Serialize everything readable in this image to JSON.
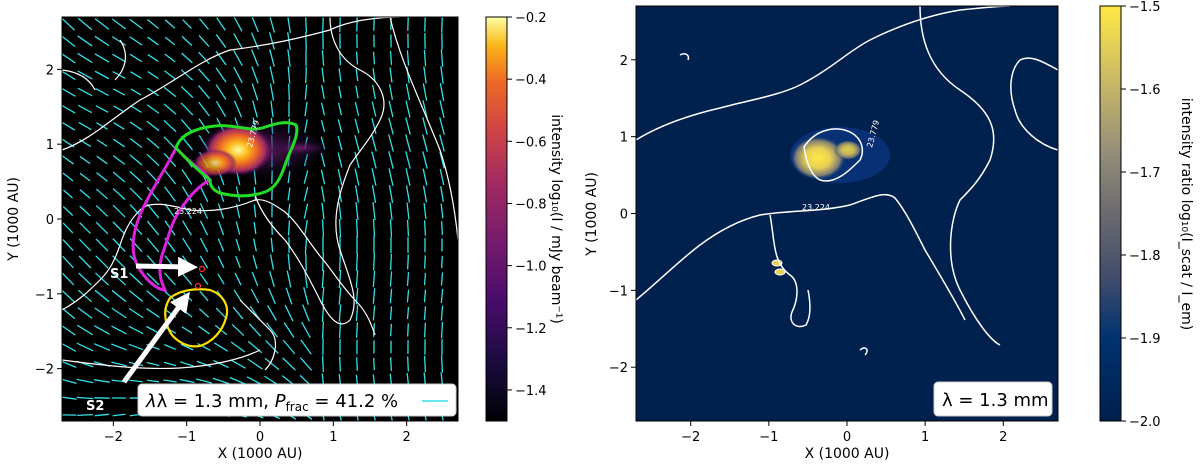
{
  "chart_data": [
    {
      "type": "heatmap",
      "xlabel": "X (1000 AU)",
      "ylabel": "Y (1000 AU)",
      "xlim": [
        -2.7,
        2.7
      ],
      "ylim": [
        -2.7,
        2.7
      ],
      "x_ticks": [
        "−2",
        "−1",
        "0",
        "1",
        "2"
      ],
      "y_ticks": [
        "−2",
        "−1",
        "0",
        "1",
        "2"
      ],
      "colormap": "inferno",
      "colorbar_label": "intensity log₁₀(I / mJy beam⁻¹)",
      "colorbar_range": [
        -1.5,
        -0.2
      ],
      "colorbar_ticks": [
        "−0.2",
        "−0.4",
        "−0.6",
        "−0.8",
        "−1.0",
        "−1.2",
        "−1.4"
      ],
      "contour_labels": [
        "23.779",
        "23.224"
      ],
      "sources": [
        {
          "name": "S1",
          "x": -0.8,
          "y": -0.7
        },
        {
          "name": "S2",
          "x": -0.85,
          "y": -0.95
        }
      ],
      "legend": "λ = 1.3 mm, P_frac = 41.2 %",
      "legend_text": "λ = 1.3 mm, ",
      "legend_p": "P",
      "legend_sub": "frac",
      "legend_tail": " = 41.2 %",
      "vector_color": "#33e0e8",
      "region_colors": [
        "#22dd22",
        "#dd22dd",
        "#ffdd00"
      ]
    },
    {
      "type": "heatmap",
      "xlabel": "X (1000 AU)",
      "ylabel": "Y (1000 AU)",
      "xlim": [
        -2.7,
        2.7
      ],
      "ylim": [
        -2.7,
        2.7
      ],
      "x_ticks": [
        "−2",
        "−1",
        "0",
        "1",
        "2"
      ],
      "y_ticks": [
        "−2",
        "−1",
        "0",
        "1",
        "2"
      ],
      "colormap": "cividis",
      "colorbar_label": "intensity ratio  log₁₀(I_scat / I_em)",
      "colorbar_range": [
        -2.0,
        -1.5
      ],
      "colorbar_ticks": [
        "−1.5",
        "−1.6",
        "−1.7",
        "−1.8",
        "−1.9",
        "−2.0"
      ],
      "contour_labels": [
        "23.779",
        "23.224"
      ],
      "legend": "λ = 1.3 mm"
    }
  ]
}
